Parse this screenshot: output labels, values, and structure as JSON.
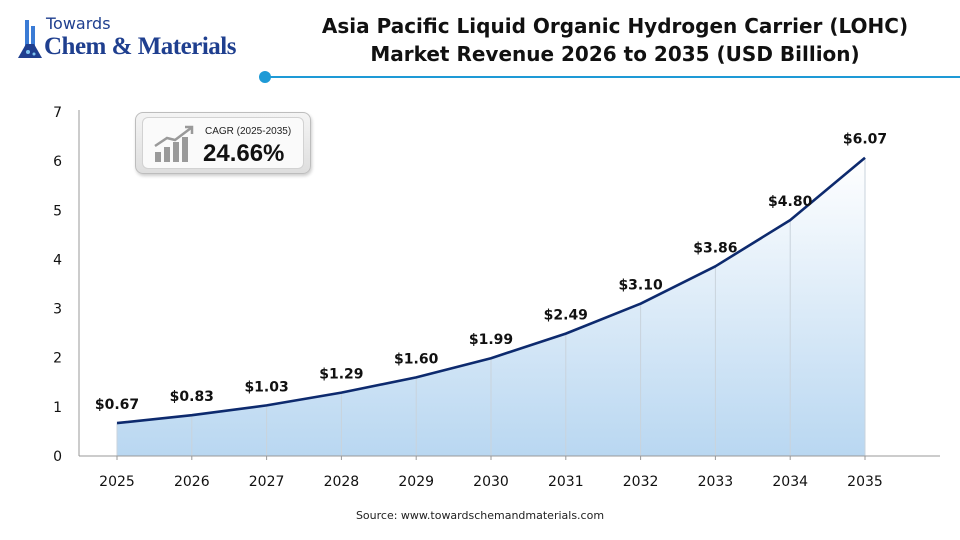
{
  "brand": {
    "line1": "Towards",
    "line2": "Chem & Materials"
  },
  "title_line1": "Asia Pacific Liquid Organic Hydrogen Carrier (LOHC)",
  "title_line2": "Market Revenue 2026 to 2035 (USD Billion)",
  "cagr": {
    "label": "CAGR (2025-2035)",
    "value": "24.66%"
  },
  "source": "Source: www.towardschemandmaterials.com",
  "colors": {
    "line": "#0d2a6e",
    "accent": "#1e9ad6",
    "area_top": "#ffffff",
    "area_bottom": "#b9d7f1"
  },
  "chart_data": {
    "type": "area",
    "title": "Asia Pacific Liquid Organic Hydrogen Carrier (LOHC) Market Revenue 2026 to 2035 (USD Billion)",
    "x": [
      "2025",
      "2026",
      "2027",
      "2028",
      "2029",
      "2030",
      "2031",
      "2032",
      "2033",
      "2034",
      "2035"
    ],
    "values": [
      0.67,
      0.83,
      1.03,
      1.29,
      1.6,
      1.99,
      2.49,
      3.1,
      3.86,
      4.8,
      6.07
    ],
    "data_labels": [
      "$0.67",
      "$0.83",
      "$1.03",
      "$1.29",
      "$1.60",
      "$1.99",
      "$2.49",
      "$3.10",
      "$3.86",
      "$4.80",
      "$6.07"
    ],
    "y_ticks": [
      0,
      1,
      2,
      3,
      4,
      5,
      6,
      7
    ],
    "ylim": [
      0,
      7
    ],
    "xlabel": "",
    "ylabel": "",
    "grid": "vertical lines at each year",
    "legend": "none"
  }
}
